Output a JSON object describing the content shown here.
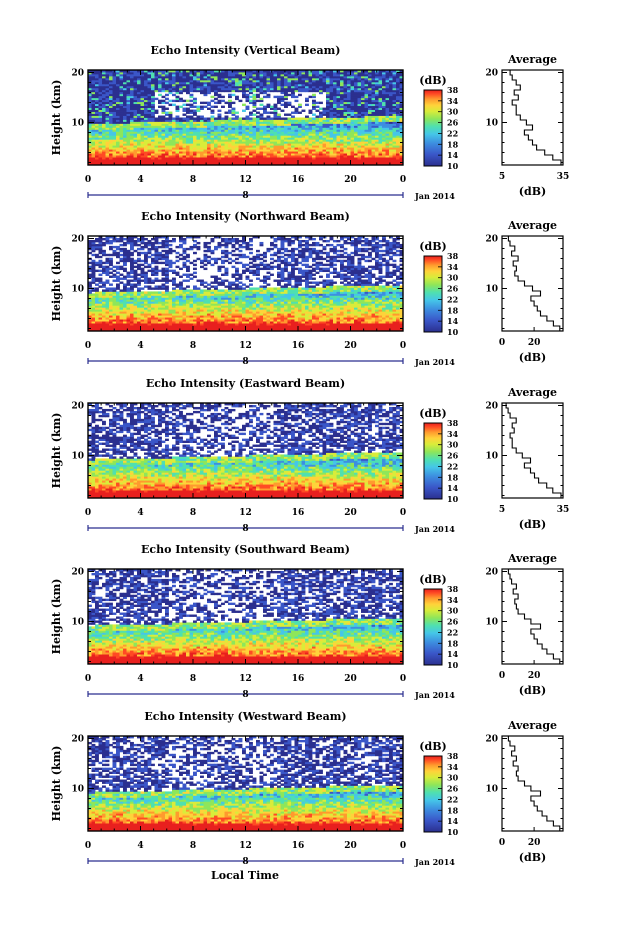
{
  "colors": {
    "scale": [
      "#2b2f8f",
      "#3a56c8",
      "#3d8fe0",
      "#45c6e8",
      "#4fe0b0",
      "#8ee65a",
      "#d9ec3a",
      "#ffd23a",
      "#ff9a2e",
      "#ff4a24",
      "#e8201e"
    ]
  },
  "figure": {
    "xlabel": "Local Time",
    "date_label": "Jan 2014",
    "day_label": "8",
    "ylabel": "Height (km)",
    "colorbar_title": "(dB)",
    "colorbar_ticks": [
      "10",
      "14",
      "18",
      "22",
      "26",
      "30",
      "34",
      "38"
    ],
    "avg_title": "Average",
    "avg_xlabel": "(dB)"
  },
  "chart_data": [
    {
      "type": "heatmap",
      "title": "Echo Intensity (Vertical Beam)",
      "x_ticks": [
        "0",
        "4",
        "8",
        "12",
        "16",
        "20",
        "0"
      ],
      "y_ticks": [
        "10",
        "20"
      ],
      "xlim": [
        0,
        24
      ],
      "ylim": [
        1.5,
        20.5
      ],
      "clim": [
        10,
        38
      ],
      "avg_profile": {
        "x_ticks": [
          "5",
          "35"
        ],
        "xlim": [
          5,
          35
        ],
        "heights": [
          2,
          3,
          4,
          5,
          6,
          7,
          8,
          9,
          10,
          11,
          12,
          13,
          14,
          15,
          16,
          17,
          18,
          19,
          20
        ],
        "values": [
          34,
          30,
          26,
          22,
          20,
          18,
          16,
          20,
          17,
          14,
          12,
          12,
          10,
          13,
          11,
          14,
          12,
          10,
          9
        ]
      }
    },
    {
      "type": "heatmap",
      "title": "Echo Intensity (Northward Beam)",
      "x_ticks": [
        "0",
        "4",
        "8",
        "12",
        "16",
        "20",
        "0"
      ],
      "y_ticks": [
        "10",
        "20"
      ],
      "xlim": [
        0,
        24
      ],
      "ylim": [
        1.5,
        20.5
      ],
      "clim": [
        10,
        38
      ],
      "avg_profile": {
        "x_ticks": [
          "0",
          "20"
        ],
        "xlim": [
          0,
          38
        ],
        "heights": [
          2,
          3,
          4,
          5,
          6,
          7,
          8,
          9,
          10,
          11,
          12,
          13,
          14,
          15,
          16,
          17,
          18,
          19,
          20
        ],
        "values": [
          36,
          32,
          28,
          24,
          22,
          20,
          18,
          24,
          19,
          14,
          10,
          8,
          9,
          7,
          10,
          6,
          8,
          5,
          4
        ]
      }
    },
    {
      "type": "heatmap",
      "title": "Echo Intensity (Eastward Beam)",
      "x_ticks": [
        "0",
        "4",
        "8",
        "12",
        "16",
        "20",
        "0"
      ],
      "y_ticks": [
        "10",
        "20"
      ],
      "xlim": [
        0,
        24
      ],
      "ylim": [
        1.5,
        20.5
      ],
      "clim": [
        10,
        38
      ],
      "avg_profile": {
        "x_ticks": [
          "5",
          "35"
        ],
        "xlim": [
          5,
          35
        ],
        "heights": [
          2,
          3,
          4,
          5,
          6,
          7,
          8,
          9,
          10,
          11,
          12,
          13,
          14,
          15,
          16,
          17,
          18,
          19,
          20
        ],
        "values": [
          34,
          30,
          27,
          23,
          21,
          19,
          16,
          19,
          15,
          12,
          10,
          10,
          9,
          11,
          10,
          12,
          9,
          8,
          7
        ]
      }
    },
    {
      "type": "heatmap",
      "title": "Echo Intensity (Southward Beam)",
      "x_ticks": [
        "0",
        "4",
        "8",
        "12",
        "16",
        "20",
        "0"
      ],
      "y_ticks": [
        "10",
        "20"
      ],
      "xlim": [
        0,
        24
      ],
      "ylim": [
        1.5,
        20.5
      ],
      "clim": [
        10,
        38
      ],
      "avg_profile": {
        "x_ticks": [
          "0",
          "20"
        ],
        "xlim": [
          0,
          38
        ],
        "heights": [
          2,
          3,
          4,
          5,
          6,
          7,
          8,
          9,
          10,
          11,
          12,
          13,
          14,
          15,
          16,
          17,
          18,
          19,
          20
        ],
        "values": [
          36,
          32,
          28,
          25,
          22,
          20,
          18,
          24,
          18,
          14,
          10,
          9,
          8,
          10,
          7,
          9,
          6,
          5,
          4
        ]
      }
    },
    {
      "type": "heatmap",
      "title": "Echo Intensity (Westward Beam)",
      "x_ticks": [
        "0",
        "4",
        "8",
        "12",
        "16",
        "20",
        "0"
      ],
      "y_ticks": [
        "10",
        "20"
      ],
      "xlim": [
        0,
        24
      ],
      "ylim": [
        1.5,
        20.5
      ],
      "clim": [
        10,
        38
      ],
      "avg_profile": {
        "x_ticks": [
          "0",
          "20"
        ],
        "xlim": [
          0,
          38
        ],
        "heights": [
          2,
          3,
          4,
          5,
          6,
          7,
          8,
          9,
          10,
          11,
          12,
          13,
          14,
          15,
          16,
          17,
          18,
          19,
          20
        ],
        "values": [
          36,
          32,
          28,
          25,
          22,
          20,
          18,
          24,
          18,
          14,
          10,
          9,
          10,
          7,
          9,
          6,
          8,
          5,
          4
        ]
      }
    }
  ]
}
